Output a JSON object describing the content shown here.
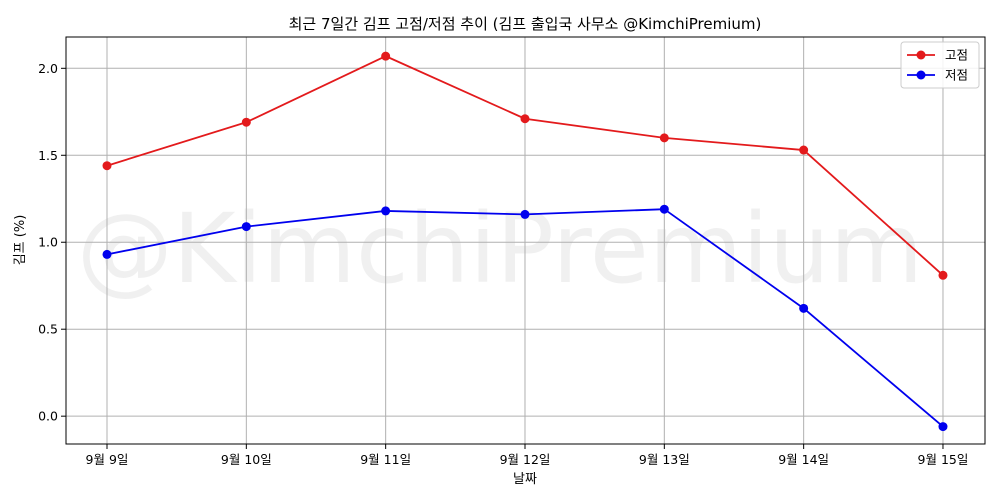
{
  "chart_data": {
    "type": "line",
    "title": "최근 7일간 김프 고점/저점 추이 (김프 출입국 사무소 @KimchiPremium)",
    "xlabel": "날짜",
    "ylabel": "김프 (%)",
    "categories": [
      "9월 9일",
      "9월 10일",
      "9월 11일",
      "9월 12일",
      "9월 13일",
      "9월 14일",
      "9월 15일"
    ],
    "ylim": [
      -0.16,
      2.18
    ],
    "yticks": [
      0.0,
      0.5,
      1.0,
      1.5,
      2.0
    ],
    "ytick_labels": [
      "0.0",
      "0.5",
      "1.0",
      "1.5",
      "2.0"
    ],
    "grid": true,
    "legend_position": "top-right",
    "watermark": "@KimchiPremium",
    "series": [
      {
        "name": "고점",
        "color": "#e31a1c",
        "marker": "circle",
        "values": [
          1.44,
          1.69,
          2.07,
          1.71,
          1.6,
          1.53,
          0.81
        ]
      },
      {
        "name": "저점",
        "color": "#0000ee",
        "marker": "circle",
        "values": [
          0.93,
          1.09,
          1.18,
          1.16,
          1.19,
          0.62,
          -0.06
        ]
      }
    ]
  }
}
